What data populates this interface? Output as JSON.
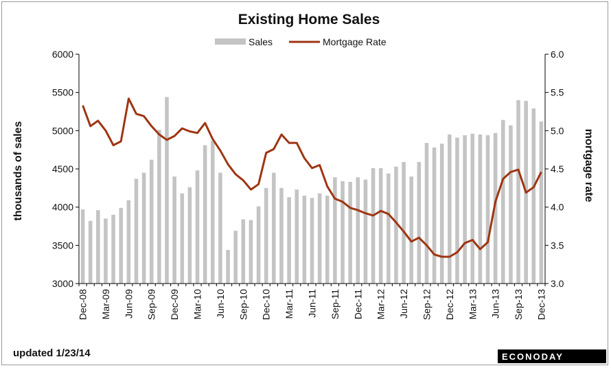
{
  "chart_data": {
    "type": "bar",
    "title": "Existing Home Sales",
    "ylabel": "thousands of sales",
    "y2label": "mortgage rate",
    "ylim": [
      3000,
      6000
    ],
    "y2lim": [
      3.0,
      6.0
    ],
    "yticks": [
      "3000",
      "3500",
      "4000",
      "4500",
      "5000",
      "5500",
      "6000"
    ],
    "y2ticks": [
      "3.0",
      "3.5",
      "4.0",
      "4.5",
      "5.0",
      "5.5",
      "6.0"
    ],
    "categories": [
      "Dec-08",
      "Jan-09",
      "Feb-09",
      "Mar-09",
      "Apr-09",
      "May-09",
      "Jun-09",
      "Jul-09",
      "Aug-09",
      "Sep-09",
      "Oct-09",
      "Nov-09",
      "Dec-09",
      "Jan-10",
      "Feb-10",
      "Mar-10",
      "Apr-10",
      "May-10",
      "Jun-10",
      "Jul-10",
      "Aug-10",
      "Sep-10",
      "Oct-10",
      "Nov-10",
      "Dec-10",
      "Jan-11",
      "Feb-11",
      "Mar-11",
      "Apr-11",
      "May-11",
      "Jun-11",
      "Jul-11",
      "Aug-11",
      "Sep-11",
      "Oct-11",
      "Nov-11",
      "Dec-11",
      "Jan-12",
      "Feb-12",
      "Mar-12",
      "Apr-12",
      "May-12",
      "Jun-12",
      "Jul-12",
      "Aug-12",
      "Sep-12",
      "Oct-12",
      "Nov-12",
      "Dec-12",
      "Jan-13",
      "Feb-13",
      "Mar-13",
      "Apr-13",
      "May-13",
      "Jun-13",
      "Jul-13",
      "Aug-13",
      "Sep-13",
      "Oct-13",
      "Nov-13",
      "Dec-13"
    ],
    "xtick_labels": [
      "Dec-08",
      "Mar-09",
      "Jun-09",
      "Sep-09",
      "Dec-09",
      "Mar-10",
      "Jun-10",
      "Sep-10",
      "Dec-10",
      "Mar-11",
      "Jun-11",
      "Sep-11",
      "Dec-11",
      "Mar-12",
      "Jun-12",
      "Sep-12",
      "Dec-12",
      "Mar-13",
      "Jun-13",
      "Sep-13",
      "Dec-13"
    ],
    "series": [
      {
        "name": "Sales",
        "kind": "bar",
        "axis": "left",
        "color": "#c4c4c4",
        "values": [
          3970,
          3820,
          3960,
          3850,
          3900,
          3990,
          4090,
          4370,
          4450,
          4620,
          5010,
          5440,
          4400,
          4180,
          4260,
          4480,
          4810,
          4870,
          4450,
          3440,
          3690,
          3840,
          3830,
          4010,
          4250,
          4450,
          4250,
          4130,
          4230,
          4150,
          4120,
          4180,
          4150,
          4390,
          4340,
          4330,
          4390,
          4360,
          4510,
          4510,
          4440,
          4530,
          4590,
          4400,
          4590,
          4840,
          4780,
          4830,
          4950,
          4910,
          4940,
          4960,
          4950,
          4940,
          4970,
          5140,
          5070,
          5400,
          5390,
          5290,
          5120
        ]
      },
      {
        "name": "Mortgage Rate",
        "kind": "line",
        "axis": "right",
        "color": "#9e3512",
        "values": [
          5.33,
          5.06,
          5.13,
          5.0,
          4.81,
          4.86,
          5.42,
          5.22,
          5.19,
          5.06,
          4.95,
          4.88,
          4.93,
          5.03,
          4.99,
          4.97,
          5.1,
          4.89,
          4.74,
          4.56,
          4.43,
          4.35,
          4.23,
          4.3,
          4.71,
          4.76,
          4.95,
          4.84,
          4.84,
          4.64,
          4.51,
          4.55,
          4.27,
          4.11,
          4.07,
          3.99,
          3.96,
          3.92,
          3.89,
          3.95,
          3.91,
          3.8,
          3.68,
          3.55,
          3.6,
          3.5,
          3.38,
          3.35,
          3.35,
          3.41,
          3.53,
          3.57,
          3.45,
          3.54,
          4.07,
          4.37,
          4.46,
          4.49,
          4.19,
          4.26,
          4.46
        ]
      }
    ],
    "legend": "top-center",
    "grid": false
  },
  "footer": {
    "updated": "updated 1/23/14",
    "logo": "ECONODAY"
  }
}
